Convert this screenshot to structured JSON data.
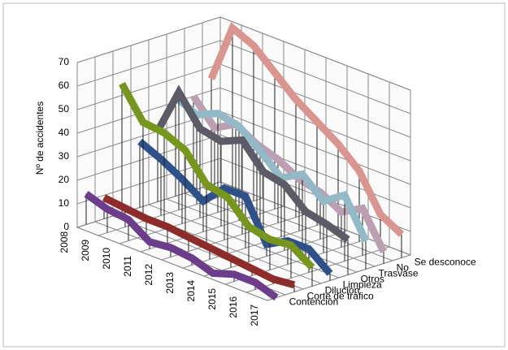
{
  "chart_data": {
    "type": "line3d",
    "ylabel": "Nº de accidentes",
    "categories": [
      "2008",
      "2009",
      "2010",
      "2011",
      "2012",
      "2013",
      "2014",
      "2015",
      "2016",
      "2017"
    ],
    "ylim": [
      0,
      70
    ],
    "yticks": [
      0,
      10,
      20,
      30,
      40,
      50,
      60,
      70
    ],
    "grid": true,
    "series": [
      {
        "name": "Contención",
        "color": "#6b3d8a",
        "values": [
          13,
          10,
          9,
          3,
          4,
          3,
          0,
          3,
          3,
          0
        ]
      },
      {
        "name": "Corte de tráfico",
        "color": "#8e2b2b",
        "values": [
          9,
          8,
          7,
          7,
          6,
          5,
          4,
          3,
          2,
          3
        ]
      },
      {
        "name": "Dilución",
        "color": "#76961e",
        "values": [
          55,
          42,
          41,
          37,
          26,
          24,
          15,
          13,
          14,
          8
        ]
      },
      {
        "name": "Limpieza",
        "color": "#2f5189",
        "values": [
          28,
          24,
          19,
          13,
          22,
          22,
          5,
          10,
          10,
          3
        ]
      },
      {
        "name": "Otros",
        "color": "#5c5c68",
        "values": [
          30,
          50,
          38,
          36,
          40,
          30,
          28,
          20,
          18,
          15
        ]
      },
      {
        "name": "Trasvase",
        "color": "#93b8c6",
        "values": [
          42,
          38,
          42,
          40,
          33,
          25,
          30,
          22,
          28,
          12
        ]
      },
      {
        "name": "No",
        "color": "#bba0b3",
        "values": [
          40,
          30,
          35,
          30,
          27,
          22,
          20,
          15,
          20,
          5
        ]
      },
      {
        "name": "Se desconoce",
        "color": "#d9958f",
        "values": [
          45,
          70,
          66,
          58,
          50,
          44,
          38,
          30,
          15,
          10
        ]
      }
    ]
  }
}
